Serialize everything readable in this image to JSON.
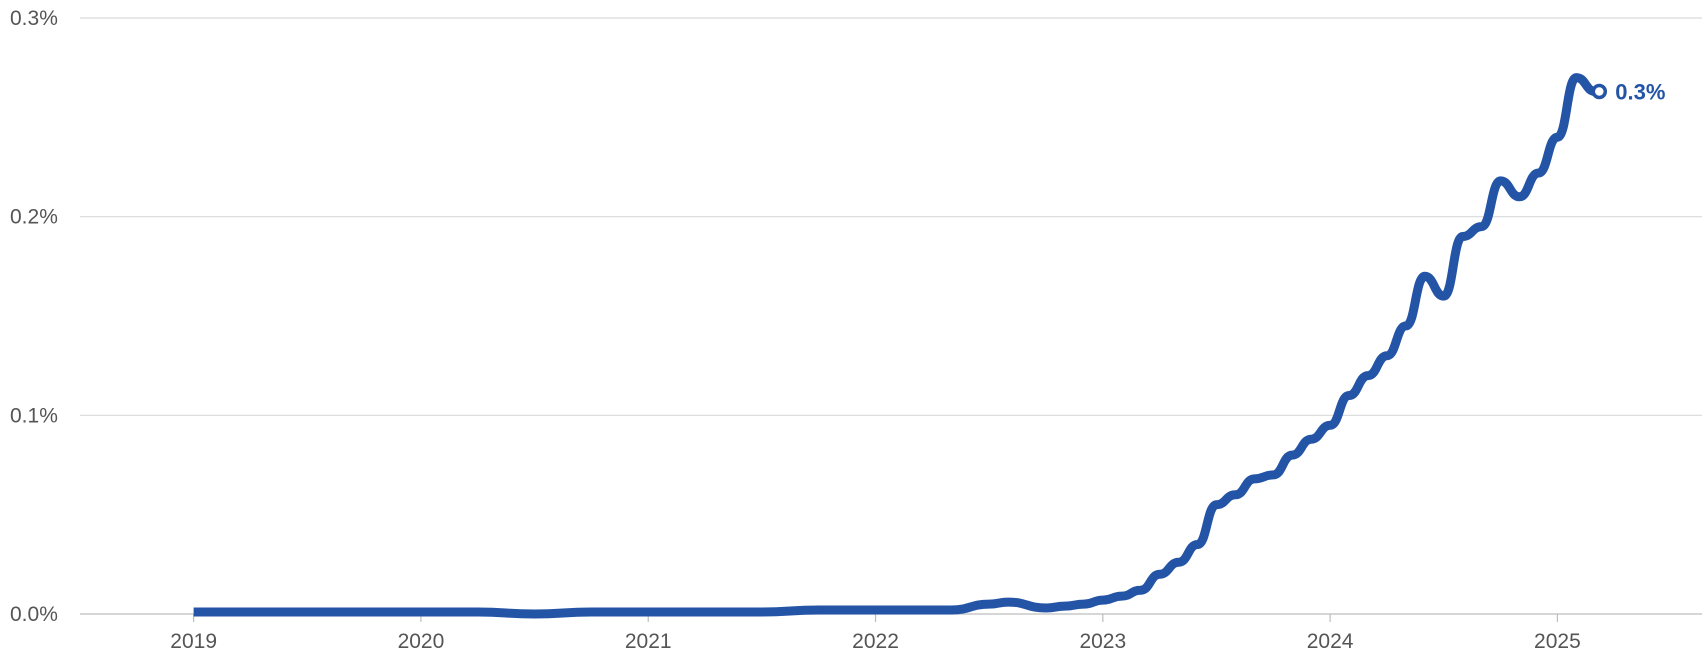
{
  "chart_data": {
    "type": "line",
    "title": "",
    "xlabel": "",
    "ylabel": "",
    "y_ticks": [
      "0.0%",
      "0.1%",
      "0.2%",
      "0.3%"
    ],
    "x_ticks": [
      "2019",
      "2020",
      "2021",
      "2022",
      "2023",
      "2024",
      "2025"
    ],
    "ylim": [
      0,
      0.3
    ],
    "xlim": [
      "2018-07",
      "2025-08"
    ],
    "grid": "horizontal",
    "line_color": "#2454a6",
    "end_label": "0.3%",
    "series": [
      {
        "x": [
          "2019-01",
          "2019-04",
          "2019-07",
          "2019-10",
          "2020-01",
          "2020-04",
          "2020-07",
          "2020-10",
          "2021-01",
          "2021-04",
          "2021-07",
          "2021-10",
          "2022-01",
          "2022-03",
          "2022-05",
          "2022-07",
          "2022-08",
          "2022-10",
          "2022-11",
          "2022-12",
          "2023-01",
          "2023-02",
          "2023-03",
          "2023-04",
          "2023-05",
          "2023-06",
          "2023-07",
          "2023-08",
          "2023-09",
          "2023-10",
          "2023-11",
          "2023-12",
          "2024-01",
          "2024-02",
          "2024-03",
          "2024-04",
          "2024-05",
          "2024-06",
          "2024-07",
          "2024-08",
          "2024-09",
          "2024-10",
          "2024-11",
          "2024-12",
          "2025-01",
          "2025-02",
          "2025-03"
        ],
        "values": [
          0.001,
          0.001,
          0.001,
          0.001,
          0.001,
          0.001,
          0.0,
          0.001,
          0.001,
          0.001,
          0.001,
          0.002,
          0.002,
          0.002,
          0.002,
          0.005,
          0.006,
          0.003,
          0.004,
          0.005,
          0.007,
          0.009,
          0.012,
          0.02,
          0.026,
          0.035,
          0.055,
          0.06,
          0.068,
          0.07,
          0.08,
          0.088,
          0.095,
          0.11,
          0.12,
          0.13,
          0.145,
          0.17,
          0.16,
          0.19,
          0.195,
          0.218,
          0.21,
          0.222,
          0.24,
          0.27,
          0.263
        ]
      }
    ]
  }
}
